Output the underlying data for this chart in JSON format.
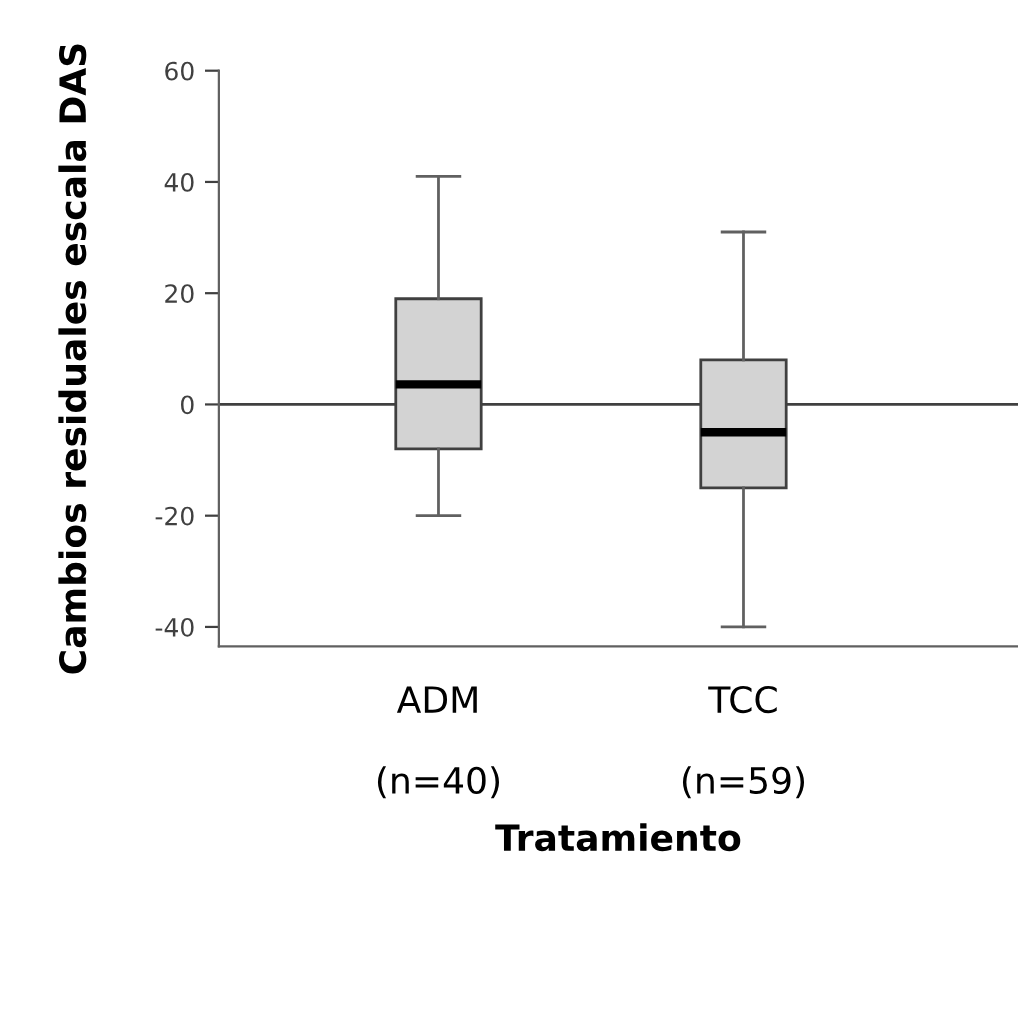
{
  "chart_data": {
    "type": "box",
    "xlabel": "Tratamiento",
    "ylabel": "Cambios residuales escala DAS",
    "categories": [
      "ADM\n\n(n=40)",
      "TCC\n\n(n=59)"
    ],
    "boxes": [
      {
        "low": -20,
        "q1": -8,
        "median": 3.6,
        "q3": 19,
        "high": 41
      },
      {
        "low": -40,
        "q1": -15,
        "median": -5,
        "q3": 8,
        "high": 31
      }
    ],
    "color": "#d3d3d3",
    "ylim": [
      -43.5,
      60
    ],
    "yticks": [
      -40,
      -20,
      0,
      20,
      40,
      60
    ],
    "ref_lines": [
      {
        "axis": "y",
        "value": 0,
        "color": "#404040"
      }
    ],
    "grid": false,
    "legend": false
  }
}
